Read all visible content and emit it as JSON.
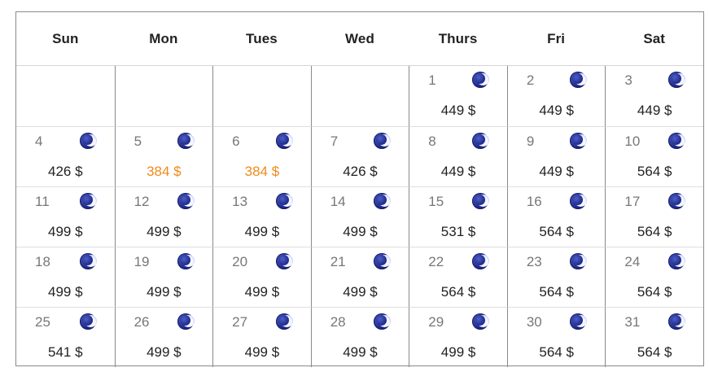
{
  "weekdays": [
    "Sun",
    "Mon",
    "Tues",
    "Wed",
    "Thurs",
    "Fri",
    "Sat"
  ],
  "colors": {
    "low_price": "#f08a1a",
    "moon": "#1f2a8a"
  },
  "days": [
    {
      "day": "1",
      "price": "449 $",
      "low": false
    },
    {
      "day": "2",
      "price": "449 $",
      "low": false
    },
    {
      "day": "3",
      "price": "449 $",
      "low": false
    },
    {
      "day": "4",
      "price": "426 $",
      "low": false
    },
    {
      "day": "5",
      "price": "384 $",
      "low": true
    },
    {
      "day": "6",
      "price": "384 $",
      "low": true
    },
    {
      "day": "7",
      "price": "426 $",
      "low": false
    },
    {
      "day": "8",
      "price": "449 $",
      "low": false
    },
    {
      "day": "9",
      "price": "449 $",
      "low": false
    },
    {
      "day": "10",
      "price": "564 $",
      "low": false
    },
    {
      "day": "11",
      "price": "499 $",
      "low": false
    },
    {
      "day": "12",
      "price": "499 $",
      "low": false
    },
    {
      "day": "13",
      "price": "499 $",
      "low": false
    },
    {
      "day": "14",
      "price": "499 $",
      "low": false
    },
    {
      "day": "15",
      "price": "531 $",
      "low": false
    },
    {
      "day": "16",
      "price": "564 $",
      "low": false
    },
    {
      "day": "17",
      "price": "564 $",
      "low": false
    },
    {
      "day": "18",
      "price": "499 $",
      "low": false
    },
    {
      "day": "19",
      "price": "499 $",
      "low": false
    },
    {
      "day": "20",
      "price": "499 $",
      "low": false
    },
    {
      "day": "21",
      "price": "499 $",
      "low": false
    },
    {
      "day": "22",
      "price": "564 $",
      "low": false
    },
    {
      "day": "23",
      "price": "564 $",
      "low": false
    },
    {
      "day": "24",
      "price": "564 $",
      "low": false
    },
    {
      "day": "25",
      "price": "541 $",
      "low": false
    },
    {
      "day": "26",
      "price": "499 $",
      "low": false
    },
    {
      "day": "27",
      "price": "499 $",
      "low": false
    },
    {
      "day": "28",
      "price": "499 $",
      "low": false
    },
    {
      "day": "29",
      "price": "499 $",
      "low": false
    },
    {
      "day": "30",
      "price": "564 $",
      "low": false
    },
    {
      "day": "31",
      "price": "564 $",
      "low": false
    }
  ]
}
